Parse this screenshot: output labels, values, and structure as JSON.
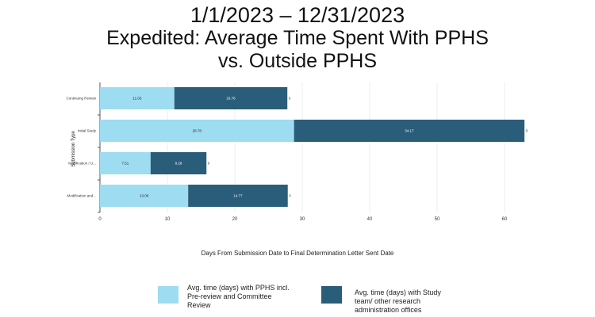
{
  "title_lines": [
    "1/1/2023 – 12/31/2023",
    "Expedited: Average Time Spent With PPHS",
    "vs. Outside PPHS"
  ],
  "chart_data": {
    "type": "bar",
    "orientation": "horizontal",
    "stacked": true,
    "title": "1/1/2023 – 12/31/2023 Expedited: Average Time Spent With PPHS vs. Outside PPHS",
    "xlabel": "Days From Submission Date to Final Determination Letter Sent Date",
    "ylabel": "Submission Type",
    "categories": [
      "Continuing Review",
      "Initial Study",
      "Modification / U...",
      "Modification and..."
    ],
    "series": [
      {
        "name": "Avg. time (days) with PPHS incl. Pre-review and Committee Review",
        "color": "#9edcf1",
        "values": [
          11.03,
          28.78,
          7.51,
          13.08
        ]
      },
      {
        "name": "Avg. time (days) with Study team/ other research administration offices",
        "color": "#2a5d7a",
        "values": [
          16.76,
          34.17,
          8.28,
          14.77
        ]
      }
    ],
    "end_labels": [
      "0",
      "0",
      "0",
      "0"
    ],
    "xticks": [
      0,
      10,
      20,
      30,
      40,
      50,
      60
    ],
    "xlim": [
      0,
      64.5
    ],
    "grid": true,
    "legend_position": "bottom"
  }
}
